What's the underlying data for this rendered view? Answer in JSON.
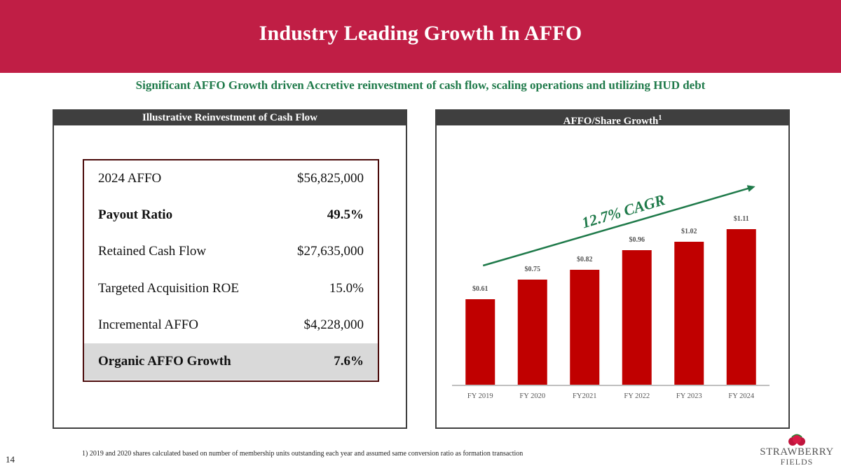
{
  "header": {
    "title": "Industry Leading Growth In AFFO"
  },
  "subtitle": "Significant AFFO Growth driven Accretive reinvestment of cash flow, scaling operations and utilizing HUD debt",
  "left_panel": {
    "title": "Illustrative Reinvestment of Cash Flow",
    "rows": [
      {
        "label": "2024 AFFO",
        "value": "$56,825,000"
      },
      {
        "label": "Payout Ratio",
        "value": "49.5%"
      },
      {
        "label": "Retained Cash Flow",
        "value": "$27,635,000"
      },
      {
        "label": "Targeted Acquisition ROE",
        "value": "15.0%"
      },
      {
        "label": "Incremental AFFO",
        "value": "$4,228,000"
      },
      {
        "label": "Organic AFFO Growth",
        "value": "7.6%"
      }
    ]
  },
  "right_panel": {
    "title": "AFFO/Share Growth",
    "title_sup": "1"
  },
  "chart_data": {
    "type": "bar",
    "title": "AFFO/Share Growth",
    "categories": [
      "FY 2019",
      "FY 2020",
      "FY2021",
      "FY 2022",
      "FY 2023",
      "FY 2024"
    ],
    "values": [
      0.61,
      0.75,
      0.82,
      0.96,
      1.02,
      1.11
    ],
    "data_labels": [
      "$0.61",
      "$0.75",
      "$0.82",
      "$0.96",
      "$1.02",
      "$1.11"
    ],
    "annotation": "12.7% CAGR",
    "ylim": [
      0,
      1.2
    ],
    "xlabel": "",
    "ylabel": "",
    "grid": false,
    "colors": {
      "bar": "#c00000",
      "annotation": "#1f7a4a",
      "axis": "#bfbfbf",
      "label": "#555555"
    }
  },
  "footnote": "1) 2019 and 2020 shares calculated based on number of membership units outstanding each year and assumed same conversion ratio as formation transaction",
  "page_number": "14",
  "logo": {
    "line1": "STRAWBERRY",
    "line2": "FIELDS"
  },
  "colors": {
    "header_bg": "#c01e45",
    "subtitle": "#1f7a4a",
    "panel_header": "#3f3f3f"
  }
}
